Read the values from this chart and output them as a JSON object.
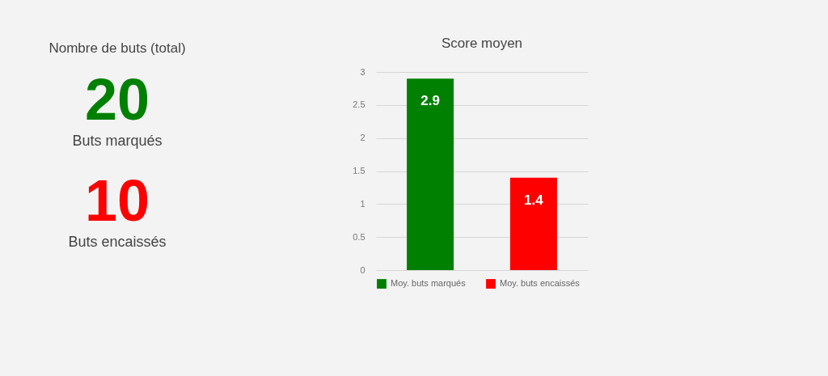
{
  "chart_data": [
    {
      "type": "other",
      "title": "Nombre de buts (total)",
      "categories": [
        "Buts marqués",
        "Buts encaissés"
      ],
      "values": [
        20,
        10
      ],
      "colors": [
        "#008000",
        "#ff0000"
      ],
      "data_labels": true
    },
    {
      "type": "bar",
      "title": "Score moyen",
      "categories": [
        null,
        null
      ],
      "series": [
        {
          "name": "Moy. buts marqués",
          "color": "#008000",
          "values": [
            2.9,
            null
          ]
        },
        {
          "name": "Moy. buts encaissés",
          "color": "#ff0000",
          "values": [
            null,
            1.4
          ]
        }
      ],
      "ylim": [
        0,
        3
      ],
      "yticks": [
        {
          "value": 0,
          "label": "0"
        },
        0.5,
        {
          "value": 1,
          "label": "1"
        },
        1.5,
        {
          "value": 2,
          "label": "2"
        },
        2.5,
        {
          "value": 3,
          "label": "3"
        }
      ],
      "grid": "y",
      "legend": "bottom",
      "data_labels": true
    }
  ]
}
